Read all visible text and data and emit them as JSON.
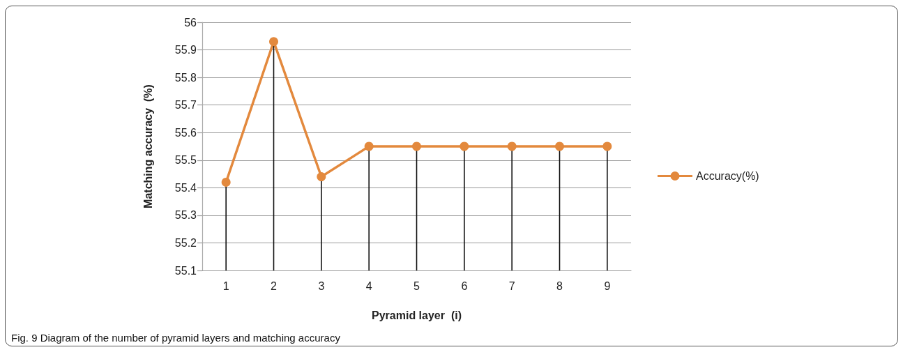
{
  "chart_data": {
    "type": "line",
    "xlabel": "Pyramid layer  (i)",
    "ylabel": "Matching accuracy  (%)",
    "annotations": [
      "Fig. 9 Diagram of the number of pyramid layers and matching accuracy"
    ],
    "categories": [
      "1",
      "2",
      "3",
      "4",
      "5",
      "6",
      "7",
      "8",
      "9"
    ],
    "series": [
      {
        "color": "#e3893d",
        "marker": "none",
        "values": [
          55.42,
          55.93,
          55.44,
          55.55,
          55.55,
          55.55,
          55.55,
          55.55,
          55.55
        ]
      },
      {
        "type": "lollipop",
        "name": "Accuracy(%)",
        "color": "#e3893d",
        "marker": "circle",
        "values": [
          55.42,
          55.93,
          55.44,
          55.55,
          55.55,
          55.55,
          55.55,
          55.55,
          55.55
        ]
      }
    ],
    "ylim": [
      55.1,
      56
    ],
    "yticks": [
      55.1,
      55.2,
      55.3,
      55.4,
      55.5,
      55.6,
      55.7,
      55.8,
      55.9,
      56
    ],
    "grid": "y",
    "legend": "right",
    "line_style": "solid"
  }
}
